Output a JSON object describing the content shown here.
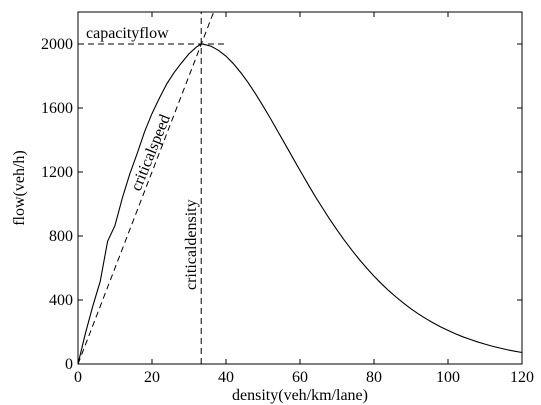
{
  "chart_data": {
    "type": "line",
    "title": "",
    "xlabel": "density(veh/km/lane)",
    "ylabel": "flow(veh/h)",
    "xlim": [
      0,
      120
    ],
    "ylim": [
      0,
      2200
    ],
    "xticks": [
      0,
      20,
      40,
      60,
      80,
      100,
      120
    ],
    "yticks": [
      0,
      400,
      800,
      1200,
      1600,
      2000
    ],
    "grid": false,
    "legend": "none",
    "series": [
      {
        "style": "solid",
        "color": "#000000",
        "x": [
          0,
          2,
          4,
          6,
          8,
          10,
          12,
          14,
          16,
          18,
          20,
          22,
          24,
          26,
          28,
          30,
          32,
          33.3,
          34,
          36,
          38,
          40,
          42,
          44,
          46,
          48,
          50,
          52,
          54,
          56,
          58,
          60,
          62,
          64,
          66,
          68,
          70,
          72,
          74,
          76,
          78,
          80,
          82,
          84,
          86,
          88,
          90,
          92,
          94,
          96,
          98,
          100,
          102,
          104,
          106,
          108,
          110,
          112,
          114,
          116,
          118,
          120
        ],
        "y": [
          0,
          191,
          362,
          516,
          767,
          866,
          1039,
          1188,
          1316,
          1452,
          1565,
          1662,
          1751,
          1822,
          1883,
          1939,
          1981,
          2000,
          1998,
          1986,
          1960,
          1924,
          1877,
          1821,
          1758,
          1688,
          1613,
          1535,
          1454,
          1373,
          1291,
          1210,
          1130,
          1052,
          978,
          906,
          838,
          773,
          712,
          654,
          600,
          549,
          502,
          458,
          418,
          380,
          345,
          313,
          284,
          257,
          232,
          210,
          189,
          170,
          154,
          138,
          124,
          111,
          100,
          89,
          80,
          72
        ]
      }
    ],
    "reference_lines": [
      {
        "label": "capacityflow",
        "style": "dashed",
        "from": [
          0,
          2000
        ],
        "to": [
          40,
          2000
        ]
      },
      {
        "label": "criticaldensity",
        "style": "dashed",
        "from": [
          33.3,
          0
        ],
        "to": [
          33.3,
          2200
        ]
      },
      {
        "label": "criticalspeed",
        "style": "dashed",
        "from": [
          0,
          0
        ],
        "to": [
          37,
          2220
        ]
      }
    ]
  }
}
